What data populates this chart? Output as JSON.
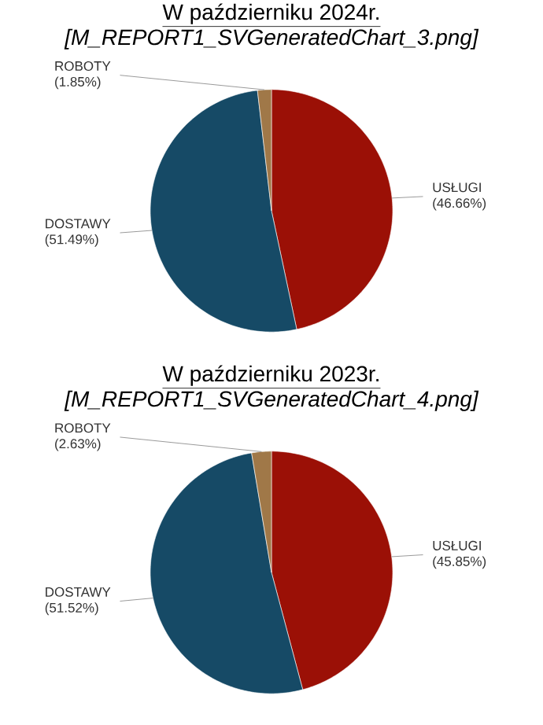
{
  "chart_data": [
    {
      "type": "pie",
      "title": "W październiku 2024r.",
      "subtitle": "[M_REPORT1_SVGeneratedChart_3.png]",
      "categories": [
        "USŁUGI",
        "DOSTAWY",
        "ROBOTY"
      ],
      "values": [
        46.66,
        51.49,
        1.85
      ],
      "colors": [
        "#9b1006",
        "#164a66",
        "#a07848"
      ],
      "value_labels": [
        "(46.66%)",
        "(51.49%)",
        "(1.85%)"
      ]
    },
    {
      "type": "pie",
      "title": "W październiku 2023r.",
      "subtitle": "[M_REPORT1_SVGeneratedChart_4.png]",
      "categories": [
        "USŁUGI",
        "DOSTAWY",
        "ROBOTY"
      ],
      "values": [
        45.85,
        51.52,
        2.63
      ],
      "colors": [
        "#9b1006",
        "#164a66",
        "#a07848"
      ],
      "value_labels": [
        "(45.85%)",
        "(51.52%)",
        "(2.63%)"
      ]
    }
  ]
}
